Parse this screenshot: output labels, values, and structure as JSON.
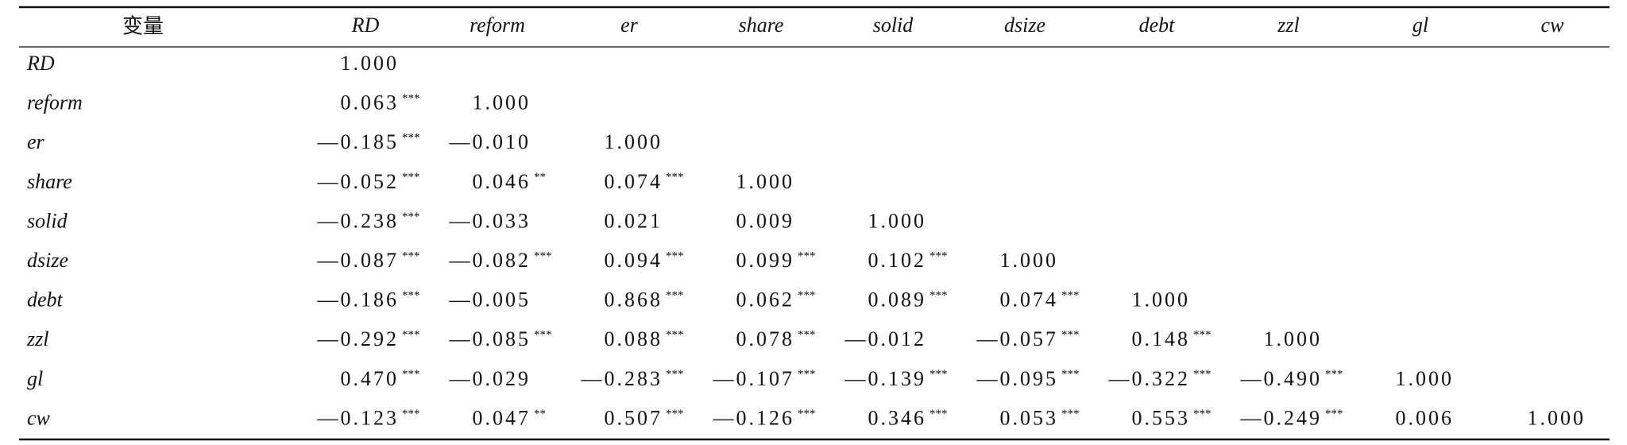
{
  "table": {
    "header": [
      "变量",
      "RD",
      "reform",
      "er",
      "share",
      "solid",
      "dsize",
      "debt",
      "zzl",
      "gl",
      "cw"
    ],
    "rows": [
      {
        "label": "RD",
        "cells": [
          {
            "v": "1.000"
          }
        ]
      },
      {
        "label": "reform",
        "cells": [
          {
            "v": "0.063",
            "s": "***"
          },
          {
            "v": "1.000"
          }
        ]
      },
      {
        "label": "er",
        "cells": [
          {
            "v": "—0.185",
            "s": "***"
          },
          {
            "v": "—0.010"
          },
          {
            "v": "1.000"
          }
        ]
      },
      {
        "label": "share",
        "cells": [
          {
            "v": "—0.052",
            "s": "***"
          },
          {
            "v": "0.046",
            "s": "**"
          },
          {
            "v": "0.074",
            "s": "***"
          },
          {
            "v": "1.000"
          }
        ]
      },
      {
        "label": "solid",
        "cells": [
          {
            "v": "—0.238",
            "s": "***"
          },
          {
            "v": "—0.033"
          },
          {
            "v": "0.021"
          },
          {
            "v": "0.009"
          },
          {
            "v": "1.000"
          }
        ]
      },
      {
        "label": "dsize",
        "cells": [
          {
            "v": "—0.087",
            "s": "***"
          },
          {
            "v": "—0.082",
            "s": "***"
          },
          {
            "v": "0.094",
            "s": "***"
          },
          {
            "v": "0.099",
            "s": "***"
          },
          {
            "v": "0.102",
            "s": "***"
          },
          {
            "v": "1.000"
          }
        ]
      },
      {
        "label": "debt",
        "cells": [
          {
            "v": "—0.186",
            "s": "***"
          },
          {
            "v": "—0.005"
          },
          {
            "v": "0.868",
            "s": "***"
          },
          {
            "v": "0.062",
            "s": "***"
          },
          {
            "v": "0.089",
            "s": "***"
          },
          {
            "v": "0.074",
            "s": "***"
          },
          {
            "v": "1.000"
          }
        ]
      },
      {
        "label": "zzl",
        "cells": [
          {
            "v": "—0.292",
            "s": "***"
          },
          {
            "v": "—0.085",
            "s": "***"
          },
          {
            "v": "0.088",
            "s": "***"
          },
          {
            "v": "0.078",
            "s": "***"
          },
          {
            "v": "—0.012"
          },
          {
            "v": "—0.057",
            "s": "***"
          },
          {
            "v": "0.148",
            "s": "***"
          },
          {
            "v": "1.000"
          }
        ]
      },
      {
        "label": "gl",
        "cells": [
          {
            "v": "0.470",
            "s": "***"
          },
          {
            "v": "—0.029"
          },
          {
            "v": "—0.283",
            "s": "***"
          },
          {
            "v": "—0.107",
            "s": "***"
          },
          {
            "v": "—0.139",
            "s": "***"
          },
          {
            "v": "—0.095",
            "s": "***"
          },
          {
            "v": "—0.322",
            "s": "***"
          },
          {
            "v": "—0.490",
            "s": "***"
          },
          {
            "v": "1.000"
          }
        ]
      },
      {
        "label": "cw",
        "cells": [
          {
            "v": "—0.123",
            "s": "***"
          },
          {
            "v": "0.047",
            "s": "**"
          },
          {
            "v": "0.507",
            "s": "***"
          },
          {
            "v": "—0.126",
            "s": "***"
          },
          {
            "v": "0.346",
            "s": "***"
          },
          {
            "v": "0.053",
            "s": "***"
          },
          {
            "v": "0.553",
            "s": "***"
          },
          {
            "v": "—0.249",
            "s": "***"
          },
          {
            "v": "0.006"
          },
          {
            "v": "1.000"
          }
        ]
      }
    ]
  }
}
